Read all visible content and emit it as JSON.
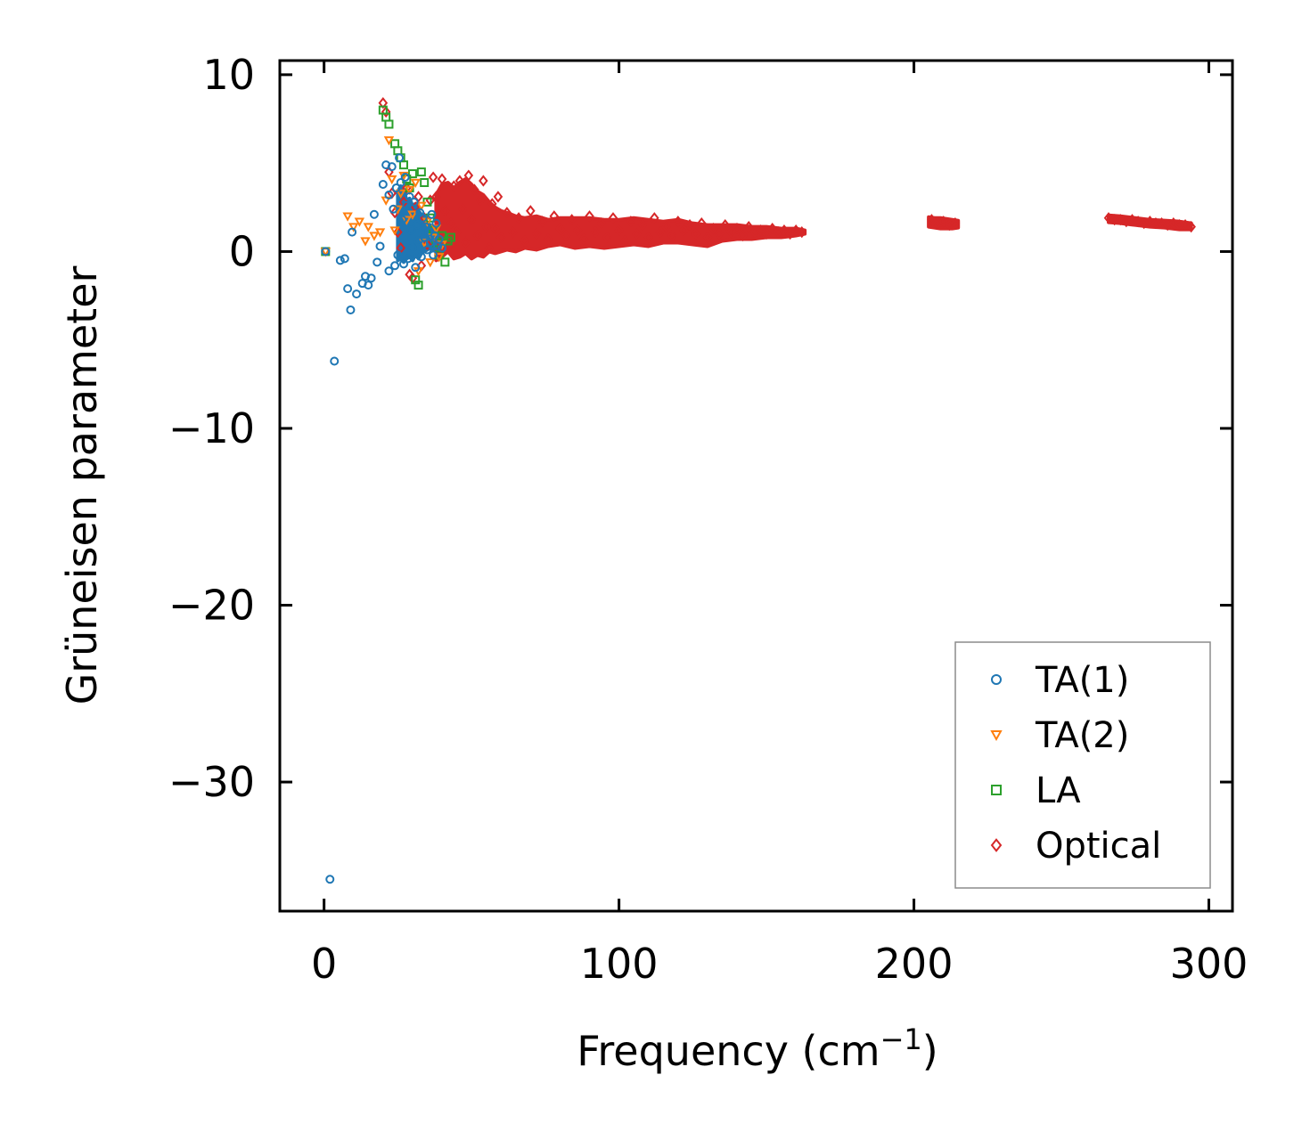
{
  "chart_data": {
    "type": "scatter",
    "title": "",
    "xlabel": "Frequency (cm",
    "xlabel_sup": "−1",
    "xlabel_close": ")",
    "ylabel": "Grüneisen parameter",
    "xlim": [
      -15,
      308
    ],
    "ylim": [
      -37.3,
      10.8
    ],
    "xticks": [
      0,
      100,
      200,
      300
    ],
    "xtick_labels": [
      "0",
      "100",
      "200",
      "300"
    ],
    "yticks": [
      10,
      0,
      -10,
      -20,
      -30
    ],
    "ytick_labels": [
      "10",
      "0",
      "−10",
      "−20",
      "−30"
    ],
    "grid": false,
    "legend_position": "lower-right",
    "series": [
      {
        "name": "TA(1)",
        "marker": "circle",
        "color": "#1f77b4",
        "points": [
          [
            0.5,
            0
          ],
          [
            2,
            -35.5
          ],
          [
            3.5,
            -6.2
          ],
          [
            5.5,
            -0.5
          ],
          [
            7,
            -0.4
          ],
          [
            8,
            -2.1
          ],
          [
            9,
            -3.3
          ],
          [
            9.5,
            1.1
          ],
          [
            11,
            -2.4
          ],
          [
            13,
            -1.8
          ],
          [
            14,
            -1.4
          ],
          [
            15,
            -1.9
          ],
          [
            16,
            -1.5
          ],
          [
            17,
            2.1
          ],
          [
            18,
            -0.6
          ],
          [
            19,
            0.3
          ],
          [
            20,
            3.8
          ],
          [
            21,
            4.9
          ],
          [
            22,
            3.2
          ],
          [
            22,
            -1.1
          ],
          [
            23,
            4.8
          ],
          [
            23.5,
            2.4
          ],
          [
            24,
            -0.8
          ],
          [
            24.5,
            3.6
          ],
          [
            25,
            -0.2
          ],
          [
            25.5,
            5.3
          ],
          [
            26,
            3.9
          ],
          [
            26.5,
            1.8
          ],
          [
            27,
            -0.7
          ],
          [
            27.5,
            4.2
          ],
          [
            28,
            2.6
          ],
          [
            28.5,
            -0.4
          ],
          [
            29,
            3.1
          ],
          [
            29.5,
            1.2
          ],
          [
            30,
            0.2
          ],
          [
            30.5,
            2.8
          ],
          [
            31,
            -0.9
          ],
          [
            31.5,
            1.5
          ],
          [
            32,
            0.6
          ],
          [
            32.5,
            2.2
          ],
          [
            33,
            -0.3
          ],
          [
            33.5,
            1.9
          ],
          [
            34,
            0.8
          ],
          [
            34.5,
            1.4
          ],
          [
            35,
            0.1
          ],
          [
            35.5,
            1.1
          ],
          [
            36,
            0.5
          ],
          [
            36.5,
            2.1
          ],
          [
            37,
            -0.2
          ],
          [
            37.5,
            0.9
          ],
          [
            38,
            1.6
          ],
          [
            38.5,
            0.3
          ],
          [
            39,
            0.7
          ],
          [
            40,
            0.2
          ]
        ]
      },
      {
        "name": "TA(2)",
        "marker": "triangle-down",
        "color": "#ff7f0e",
        "points": [
          [
            0.5,
            0
          ],
          [
            8,
            2
          ],
          [
            10,
            1.4
          ],
          [
            12,
            1.7
          ],
          [
            14,
            0.6
          ],
          [
            15,
            1.4
          ],
          [
            17,
            0.9
          ],
          [
            19,
            1.1
          ],
          [
            21,
            2.9
          ],
          [
            22,
            6.3
          ],
          [
            23,
            4.1
          ],
          [
            24,
            1.2
          ],
          [
            25,
            2.4
          ],
          [
            26,
            3.3
          ],
          [
            27,
            4.3
          ],
          [
            28,
            1.8
          ],
          [
            29,
            3.5
          ],
          [
            30,
            2.1
          ],
          [
            31,
            3.9
          ],
          [
            32,
            -1.1
          ],
          [
            33,
            2.6
          ],
          [
            34,
            0.5
          ],
          [
            35,
            1.7
          ],
          [
            36,
            -0.6
          ],
          [
            37,
            0.8
          ],
          [
            38,
            1.3
          ],
          [
            39,
            -0.3
          ],
          [
            40,
            0.4
          ]
        ]
      },
      {
        "name": "LA",
        "marker": "square",
        "color": "#2ca02c",
        "points": [
          [
            0.5,
            0
          ],
          [
            20,
            8
          ],
          [
            21,
            7.6
          ],
          [
            22,
            7.2
          ],
          [
            24,
            6.1
          ],
          [
            25,
            5.7
          ],
          [
            26,
            5.3
          ],
          [
            27,
            4.9
          ],
          [
            28,
            4.1
          ],
          [
            29,
            3.6
          ],
          [
            30,
            4.4
          ],
          [
            31,
            -1.6
          ],
          [
            32,
            -1.9
          ],
          [
            33,
            4.5
          ],
          [
            34,
            3.9
          ],
          [
            35,
            2.8
          ],
          [
            36,
            1.9
          ],
          [
            37,
            1.2
          ],
          [
            38,
            0.5
          ],
          [
            39,
            -0.2
          ],
          [
            40,
            0.9
          ],
          [
            41,
            -0.6
          ],
          [
            42,
            0.6
          ],
          [
            43,
            0.8
          ]
        ]
      },
      {
        "name": "Optical",
        "marker": "diamond",
        "color": "#d62728",
        "points": [
          [
            20,
            8.4
          ],
          [
            21,
            7.9
          ],
          [
            22,
            4.5
          ],
          [
            23,
            3.3
          ],
          [
            24,
            2.2
          ],
          [
            25,
            1.1
          ],
          [
            26,
            0.2
          ],
          [
            27,
            2.8
          ],
          [
            28,
            3.6
          ],
          [
            29,
            -1.3
          ],
          [
            30,
            -1.5
          ],
          [
            31,
            2.5
          ],
          [
            32,
            3.1
          ],
          [
            33,
            -0.8
          ],
          [
            34,
            1.9
          ],
          [
            35,
            0.4
          ],
          [
            36,
            2.9
          ],
          [
            37,
            4.2
          ],
          [
            38,
            3.1
          ],
          [
            39,
            0.6
          ],
          [
            40,
            4.1
          ],
          [
            41,
            2.3
          ],
          [
            42,
            0.3
          ],
          [
            43,
            1.6
          ],
          [
            44,
            3.7
          ],
          [
            45,
            1.1
          ],
          [
            46,
            4.0
          ],
          [
            47,
            2.4
          ],
          [
            48,
            0.5
          ],
          [
            49,
            4.3
          ],
          [
            50,
            1.8
          ],
          [
            51,
            3.5
          ],
          [
            52,
            0.9
          ],
          [
            53,
            2.9
          ],
          [
            54,
            4.0
          ],
          [
            55,
            1.4
          ],
          [
            56,
            0.2
          ],
          [
            57,
            2.7
          ],
          [
            58,
            1.3
          ],
          [
            59,
            3.1
          ],
          [
            60,
            0.8
          ],
          [
            62,
            2.2
          ],
          [
            64,
            1.1
          ],
          [
            66,
            1.9
          ],
          [
            68,
            0.6
          ],
          [
            70,
            2.3
          ],
          [
            72,
            1.0
          ],
          [
            74,
            1.7
          ],
          [
            76,
            0.7
          ],
          [
            78,
            2.0
          ],
          [
            80,
            1.3
          ],
          [
            82,
            0.9
          ],
          [
            84,
            1.8
          ],
          [
            86,
            1.2
          ],
          [
            88,
            0.7
          ],
          [
            90,
            2.0
          ],
          [
            92,
            1.1
          ],
          [
            94,
            1.6
          ],
          [
            96,
            0.8
          ],
          [
            98,
            1.9
          ],
          [
            100,
            1.2
          ],
          [
            102,
            0.6
          ],
          [
            104,
            1.7
          ],
          [
            106,
            1.0
          ],
          [
            108,
            1.5
          ],
          [
            110,
            0.8
          ],
          [
            112,
            1.9
          ],
          [
            114,
            1.1
          ],
          [
            116,
            1.4
          ],
          [
            118,
            0.9
          ],
          [
            120,
            1.7
          ],
          [
            122,
            1.2
          ],
          [
            124,
            1.5
          ],
          [
            126,
            1.0
          ],
          [
            128,
            1.6
          ],
          [
            130,
            0.8
          ],
          [
            132,
            1.3
          ],
          [
            134,
            1.0
          ],
          [
            136,
            1.5
          ],
          [
            138,
            1.1
          ],
          [
            140,
            1.3
          ],
          [
            142,
            0.9
          ],
          [
            144,
            1.4
          ],
          [
            146,
            1.1
          ],
          [
            148,
            1.2
          ],
          [
            150,
            1.0
          ],
          [
            152,
            1.3
          ],
          [
            154,
            1.1
          ],
          [
            156,
            1.2
          ],
          [
            158,
            1.0
          ],
          [
            160,
            1.2
          ],
          [
            162,
            1.1
          ],
          [
            206,
            1.8
          ],
          [
            208,
            1.6
          ],
          [
            210,
            1.7
          ],
          [
            212,
            1.5
          ],
          [
            214,
            1.6
          ],
          [
            266,
            1.9
          ],
          [
            268,
            1.8
          ],
          [
            270,
            1.8
          ],
          [
            272,
            1.7
          ],
          [
            274,
            1.8
          ],
          [
            276,
            1.7
          ],
          [
            278,
            1.6
          ],
          [
            280,
            1.7
          ],
          [
            282,
            1.6
          ],
          [
            284,
            1.6
          ],
          [
            286,
            1.5
          ],
          [
            288,
            1.6
          ],
          [
            290,
            1.5
          ],
          [
            292,
            1.5
          ],
          [
            294,
            1.4
          ]
        ]
      }
    ],
    "bands": [
      {
        "series": "TA(1)",
        "color": "#1f77b4",
        "x": [
          25,
          26,
          27,
          28,
          29,
          30,
          31,
          32,
          33,
          34,
          35,
          36,
          37,
          38
        ],
        "lo": [
          -0.5,
          -0.4,
          -0.6,
          -0.4,
          -0.3,
          -0.5,
          -0.2,
          -0.4,
          -0.1,
          0.0,
          0.1,
          0.2,
          0.1,
          0.3
        ],
        "hi": [
          3.4,
          3.7,
          3.5,
          2.9,
          3.0,
          2.6,
          2.7,
          2.3,
          2.1,
          1.9,
          1.6,
          1.5,
          1.2,
          1.0
        ]
      },
      {
        "series": "Optical",
        "color": "#d62728",
        "x": [
          38,
          40,
          42,
          44,
          46,
          48,
          50,
          52,
          54,
          56,
          58,
          60,
          62,
          65,
          68,
          72,
          76,
          80,
          85,
          90,
          95,
          100,
          105,
          110,
          115,
          120,
          125,
          130,
          135,
          140,
          145,
          150,
          155,
          160,
          163
        ],
        "lo": [
          -0.5,
          -0.3,
          0.0,
          -0.4,
          -0.3,
          -0.1,
          -0.4,
          -0.2,
          -0.3,
          0.0,
          -0.1,
          0.0,
          0.1,
          0.0,
          0.2,
          0.1,
          0.3,
          0.4,
          0.2,
          0.3,
          0.2,
          0.3,
          0.4,
          0.3,
          0.5,
          0.5,
          0.4,
          0.3,
          0.6,
          0.7,
          0.7,
          0.8,
          0.8,
          0.9,
          1.0
        ],
        "hi": [
          3.2,
          3.8,
          3.9,
          3.6,
          3.9,
          4.1,
          3.8,
          3.4,
          3.2,
          2.8,
          2.5,
          2.3,
          2.2,
          2.0,
          1.9,
          2.0,
          1.8,
          1.9,
          1.9,
          1.9,
          1.8,
          1.8,
          1.9,
          1.8,
          1.7,
          1.8,
          1.6,
          1.5,
          1.5,
          1.5,
          1.4,
          1.4,
          1.3,
          1.3,
          1.2
        ]
      },
      {
        "series": "Optical",
        "color": "#d62728",
        "x": [
          205,
          207,
          209,
          211,
          213,
          215
        ],
        "lo": [
          1.4,
          1.35,
          1.3,
          1.3,
          1.3,
          1.35
        ],
        "hi": [
          1.95,
          1.9,
          1.9,
          1.85,
          1.8,
          1.75
        ]
      },
      {
        "series": "Optical",
        "color": "#d62728",
        "x": [
          266,
          270,
          275,
          280,
          285,
          290,
          294
        ],
        "lo": [
          1.65,
          1.6,
          1.5,
          1.4,
          1.35,
          1.25,
          1.25
        ],
        "hi": [
          2.05,
          2.0,
          1.9,
          1.8,
          1.75,
          1.7,
          1.6
        ]
      }
    ]
  }
}
